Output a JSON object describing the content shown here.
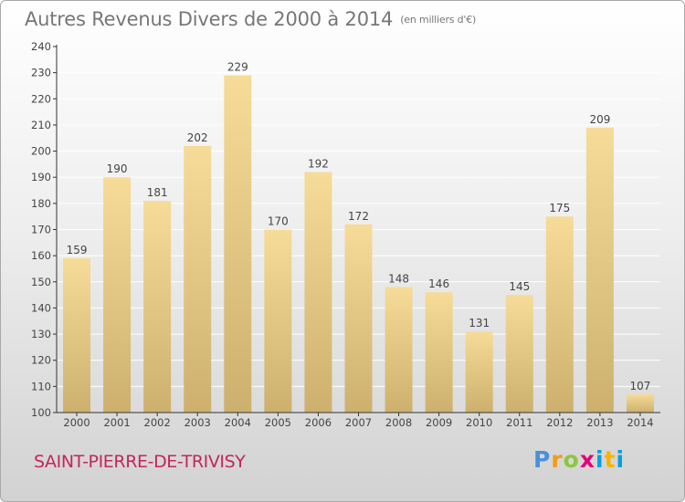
{
  "title": "Autres Revenus Divers de 2000 à 2014",
  "subtitle": "(en milliers d'€)",
  "location": "SAINT-PIERRE-DE-TRIVISY",
  "brand": "Proxiti",
  "colors": {
    "bar_light": "#f6dc98",
    "bar_dark": "#cdb06e",
    "axis": "#333333",
    "grid": "#ffffff",
    "location_text": "#c3265a",
    "title_text": "#777777"
  },
  "chart_data": {
    "type": "bar",
    "title": "Autres Revenus Divers de 2000 à 2014",
    "subtitle": "(en milliers d'€)",
    "categories": [
      "2000",
      "2001",
      "2002",
      "2003",
      "2004",
      "2005",
      "2006",
      "2007",
      "2008",
      "2009",
      "2010",
      "2011",
      "2012",
      "2013",
      "2014"
    ],
    "values": [
      159,
      190,
      181,
      202,
      229,
      170,
      192,
      172,
      148,
      146,
      131,
      145,
      175,
      209,
      107
    ],
    "ylim": [
      100,
      240
    ],
    "yticks": [
      100,
      110,
      120,
      130,
      140,
      150,
      160,
      170,
      180,
      190,
      200,
      210,
      220,
      230,
      240
    ],
    "grid": true,
    "xlabel": "",
    "ylabel": ""
  }
}
